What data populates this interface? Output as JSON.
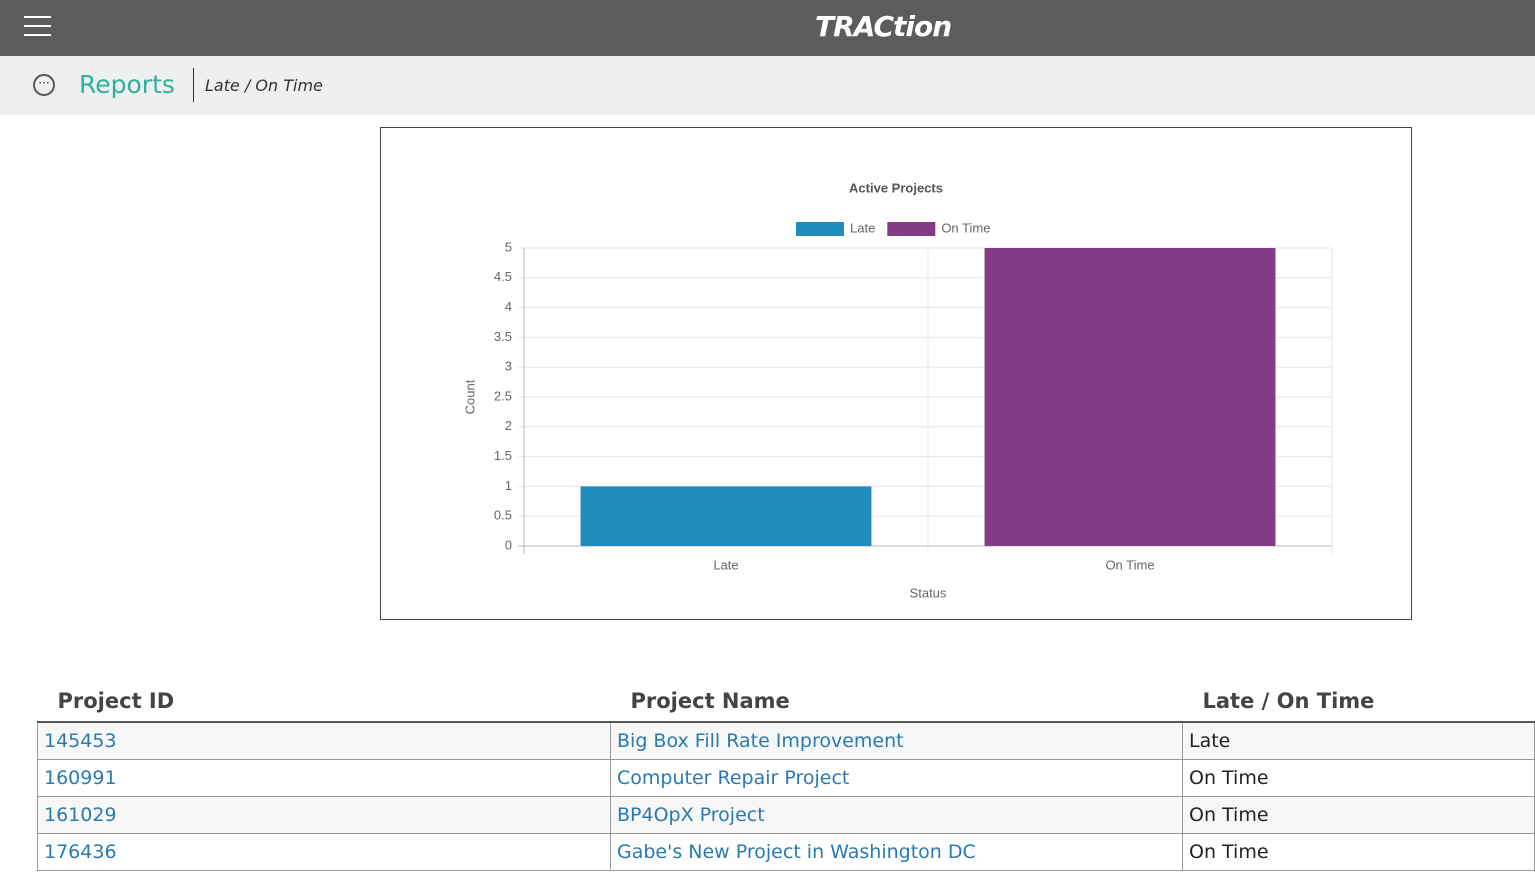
{
  "header": {
    "logo": "TRACtion"
  },
  "breadcrumb": {
    "section": "Reports",
    "page": "Late / On Time"
  },
  "chart_data": {
    "type": "bar",
    "title": "Active Projects",
    "categories": [
      "Late",
      "On Time"
    ],
    "series": [
      {
        "name": "Late",
        "color": "#1f8dbb",
        "values": [
          1,
          null
        ]
      },
      {
        "name": "On Time",
        "color": "#833b85",
        "values": [
          null,
          5
        ]
      }
    ],
    "xlabel": "Status",
    "ylabel": "Count",
    "ylim": [
      0,
      5
    ],
    "yticks": [
      0,
      0.5,
      1,
      1.5,
      2,
      2.5,
      3,
      3.5,
      4,
      4.5,
      5
    ],
    "grid": true
  },
  "table": {
    "columns": [
      "Project ID",
      "Project Name",
      "Late / On Time"
    ],
    "rows": [
      [
        "145453",
        "Big Box Fill Rate Improvement",
        "Late"
      ],
      [
        "160991",
        "Computer Repair Project",
        "On Time"
      ],
      [
        "161029",
        "BP4OpX Project",
        "On Time"
      ],
      [
        "176436",
        "Gabe's New Project in Washington DC",
        "On Time"
      ]
    ]
  }
}
